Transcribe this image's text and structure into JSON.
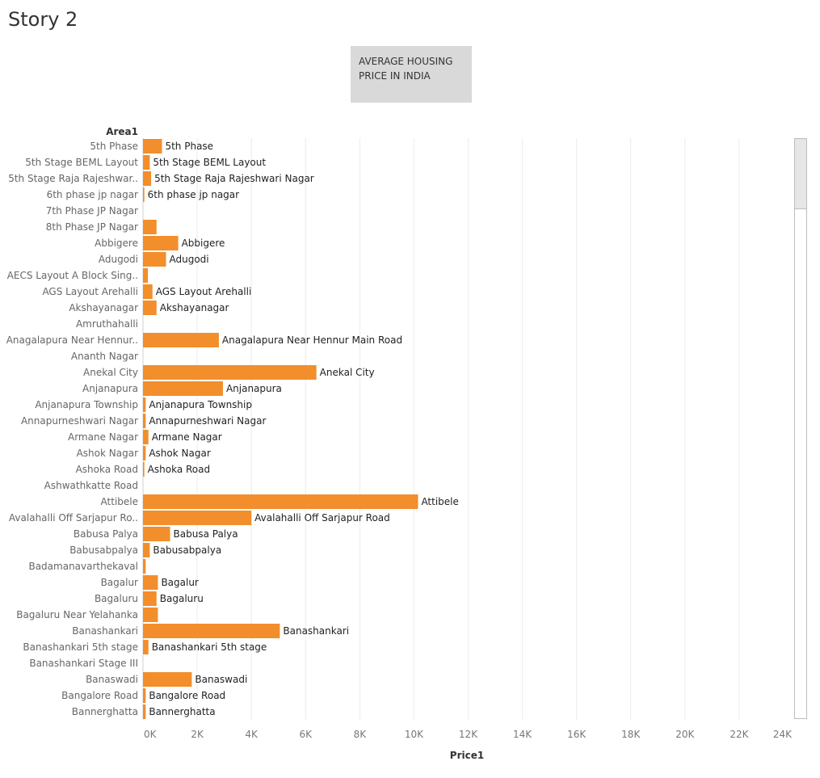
{
  "story": {
    "title": "Story 2"
  },
  "caption": {
    "line1": "AVERAGE HOUSING",
    "line2": "PRICE IN INDIA"
  },
  "chart_data": {
    "type": "bar",
    "orientation": "horizontal",
    "row_header": "Area1",
    "xlabel": "Price1",
    "xlim": [
      0,
      24000
    ],
    "x_ticks": [
      "0K",
      "2K",
      "4K",
      "6K",
      "8K",
      "10K",
      "12K",
      "14K",
      "16K",
      "18K",
      "20K",
      "22K",
      "24K"
    ],
    "grid": true,
    "bar_color": "#f28e2b",
    "categories": [
      "5th Phase",
      "5th Stage BEML Layout",
      "5th Stage Raja Rajeshwar..",
      "6th phase jp nagar",
      "7th Phase JP Nagar",
      "8th Phase JP Nagar",
      "Abbigere",
      "Adugodi",
      "AECS Layout A Block Sing..",
      "AGS Layout Arehalli",
      "Akshayanagar",
      "Amruthahalli",
      "Anagalapura Near Hennur..",
      "Ananth Nagar",
      "Anekal City",
      "Anjanapura",
      "Anjanapura Township",
      "Annapurneshwari Nagar",
      "Armane Nagar",
      "Ashok Nagar",
      "Ashoka Road",
      "Ashwathkatte Road",
      "Attibele",
      "Avalahalli Off Sarjapur Ro..",
      "Babusa Palya",
      "Babusabpalya",
      "Badamanavarthekaval",
      "Bagalur",
      "Bagaluru",
      "Bagaluru Near Yelahanka",
      "Banashankari",
      "Banashankari 5th stage",
      "Banashankari Stage III",
      "Banaswadi",
      "Bangalore Road",
      "Bannerghatta"
    ],
    "bar_labels": [
      "5th Phase",
      "5th Stage BEML Layout",
      "5th Stage Raja Rajeshwari Nagar",
      "6th phase jp nagar",
      "",
      "",
      "Abbigere",
      "Adugodi",
      "",
      "AGS Layout Arehalli",
      "Akshayanagar",
      "",
      "Anagalapura Near Hennur Main Road",
      "",
      "Anekal City",
      "Anjanapura",
      "Anjanapura Township",
      "Annapurneshwari Nagar",
      "Armane Nagar",
      "Ashok Nagar",
      "Ashoka Road",
      "",
      "Attibele",
      "Avalahalli Off Sarjapur Road",
      "Babusa Palya",
      "Babusabpalya",
      "",
      "Bagalur",
      "Bagaluru",
      "",
      "Banashankari",
      "Banashankari 5th stage",
      "",
      "Banaswadi",
      "Bangalore Road",
      "Bannerghatta"
    ],
    "values": [
      700,
      250,
      300,
      50,
      0,
      500,
      1300,
      850,
      180,
      350,
      500,
      0,
      2800,
      0,
      6400,
      2950,
      100,
      100,
      200,
      100,
      50,
      0,
      10150,
      4000,
      1000,
      250,
      100,
      550,
      500,
      550,
      5050,
      200,
      0,
      1800,
      100,
      100
    ]
  }
}
